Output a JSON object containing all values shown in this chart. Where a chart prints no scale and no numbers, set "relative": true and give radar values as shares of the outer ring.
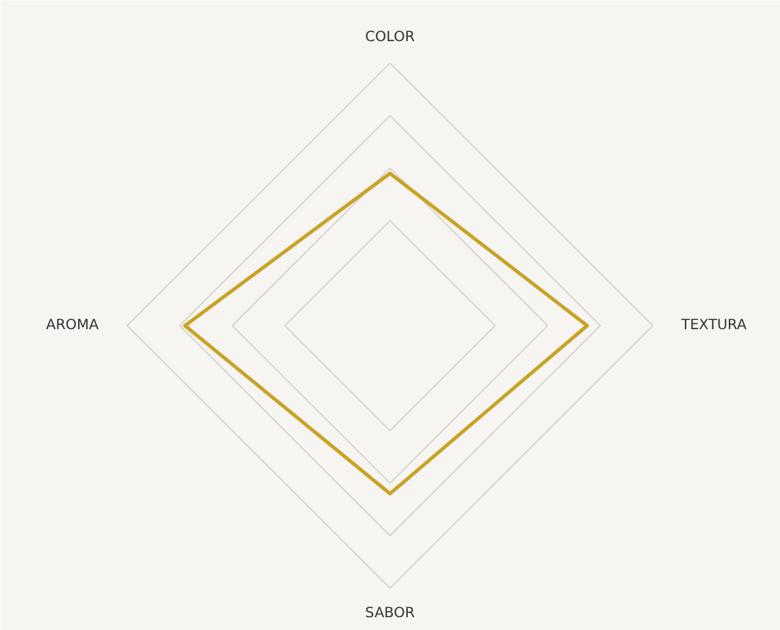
{
  "chart_data": {
    "type": "radar",
    "relative": true,
    "grid": true,
    "categories": [
      "COLOR",
      "TEXTURA",
      "SABOR",
      "AROMA"
    ],
    "series": [
      {
        "color": "#c9a227",
        "values": [
          0.58,
          0.75,
          0.64,
          0.78
        ]
      }
    ]
  }
}
